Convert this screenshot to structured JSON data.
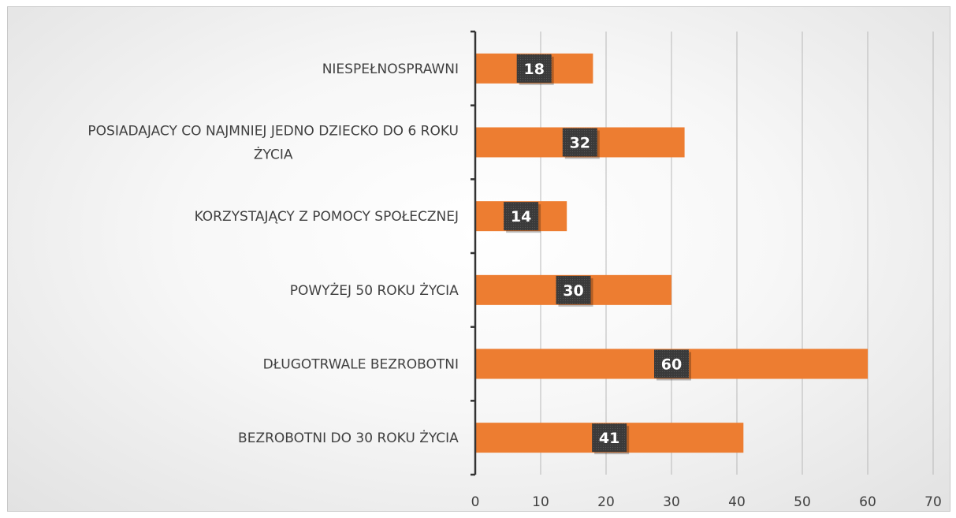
{
  "chart_data": {
    "type": "bar",
    "orientation": "horizontal",
    "categories": [
      "BEZROBOTNI DO 30 ROKU ŻYCIA",
      "DŁUGOTRWALE BEZROBOTNI",
      "POWYŻEJ 50 ROKU ŻYCIA",
      "KORZYSTAJĄCY Z POMOCY SPOŁECZNEJ",
      "POSIADAJACY CO NAJMNIEJ JEDNO DZIECKO DO 6 ROKU ŻYCIA",
      "NIESPEŁNOSPRAWNI"
    ],
    "category_lines": [
      [
        "BEZROBOTNI DO 30 ROKU ŻYCIA"
      ],
      [
        "DŁUGOTRWALE BEZROBOTNI"
      ],
      [
        "POWYŻEJ 50 ROKU ŻYCIA"
      ],
      [
        "KORZYSTAJĄCY Z POMOCY SPOŁECZNEJ"
      ],
      [
        "POSIADAJACY CO NAJMNIEJ JEDNO DZIECKO DO 6 ROKU",
        "ŻYCIA"
      ],
      [
        "NIESPEŁNOSPRAWNI"
      ]
    ],
    "values": [
      41,
      60,
      30,
      14,
      32,
      18
    ],
    "title": "",
    "xlabel": "",
    "ylabel": "",
    "xlim": [
      0,
      70
    ],
    "xticks": [
      0,
      10,
      20,
      30,
      40,
      50,
      60,
      70
    ],
    "grid": true,
    "legend": "none",
    "bar_color": "#ED7D31",
    "label_box_color": "#3A3A3A",
    "label_color": "#FFFFFF"
  }
}
